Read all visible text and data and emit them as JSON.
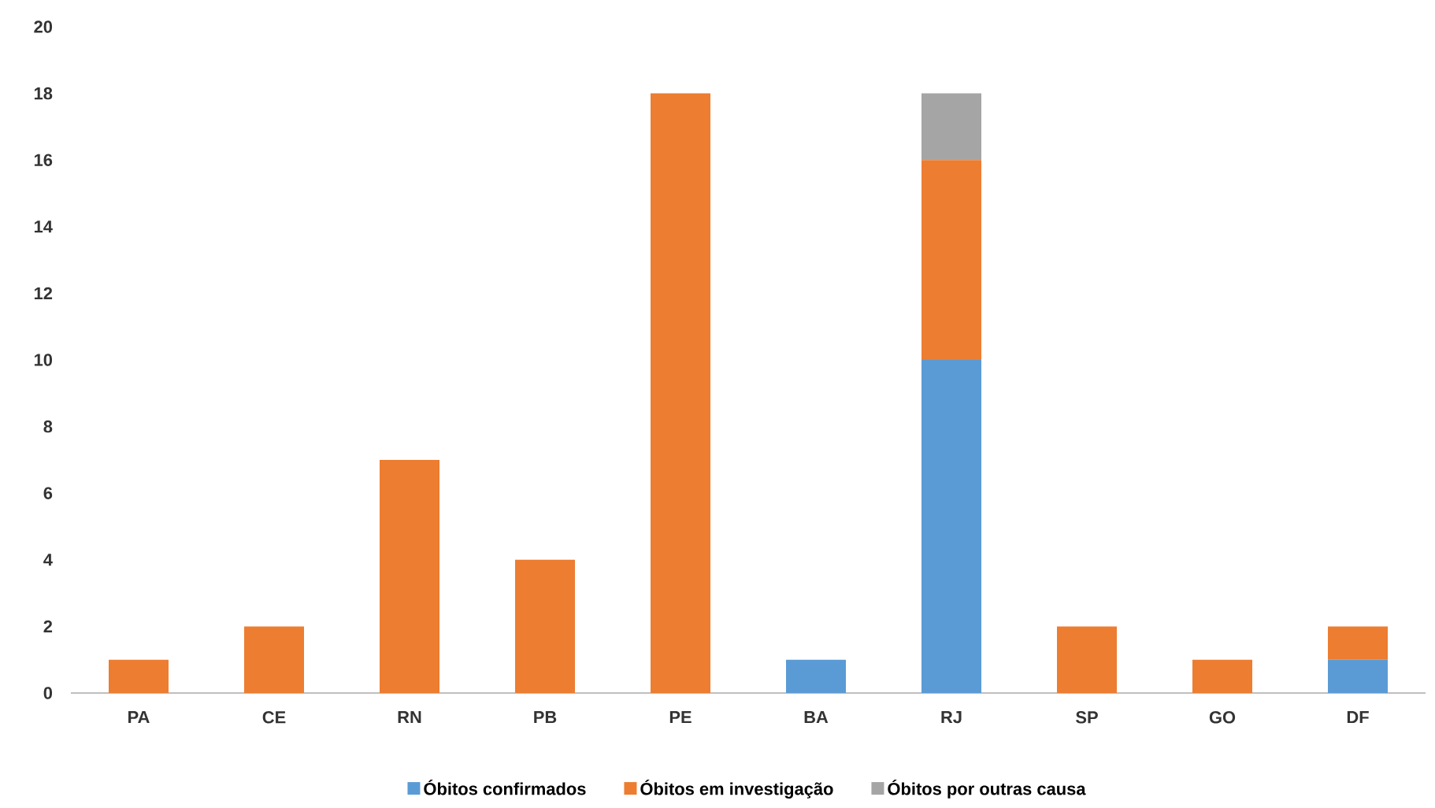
{
  "chart_data": {
    "type": "bar",
    "stacked": true,
    "categories": [
      "PA",
      "CE",
      "RN",
      "PB",
      "PE",
      "BA",
      "RJ",
      "SP",
      "GO",
      "DF"
    ],
    "series": [
      {
        "name": "Óbitos confirmados",
        "color": "#5b9bd5",
        "values": [
          0,
          0,
          0,
          0,
          0,
          1,
          10,
          0,
          0,
          1
        ]
      },
      {
        "name": "Óbitos em investigação",
        "color": "#ed7d31",
        "values": [
          1,
          2,
          7,
          4,
          18,
          0,
          6,
          2,
          1,
          1
        ]
      },
      {
        "name": "Óbitos por outras causa",
        "color": "#a5a5a5",
        "values": [
          0,
          0,
          0,
          0,
          0,
          0,
          2,
          0,
          0,
          0
        ]
      }
    ],
    "ylim": [
      0,
      20
    ],
    "yticks": [
      0,
      2,
      4,
      6,
      8,
      10,
      12,
      14,
      16,
      18,
      20
    ],
    "legend": "bottom"
  }
}
